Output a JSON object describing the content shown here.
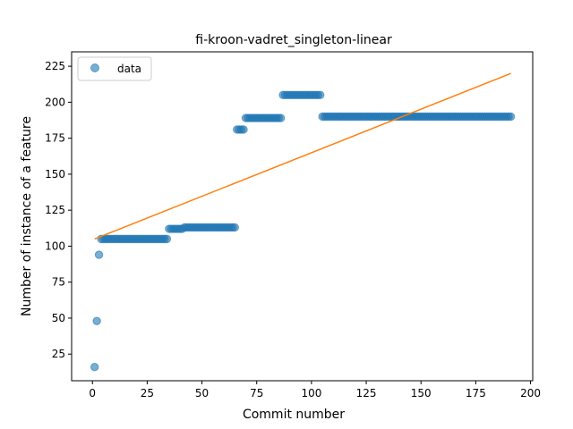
{
  "chart_data": {
    "type": "scatter",
    "title": "fi-kroon-vadret_singleton-linear",
    "xlabel": "Commit number",
    "ylabel": "Number of instance of a feature",
    "xlim": [
      -9.5,
      201
    ],
    "ylim": [
      6.5,
      235
    ],
    "xticks": [
      0,
      25,
      50,
      75,
      100,
      125,
      150,
      175,
      200
    ],
    "yticks": [
      25,
      50,
      75,
      100,
      125,
      150,
      175,
      200,
      225
    ],
    "legend": {
      "position": "top-left",
      "entries": [
        "data"
      ]
    },
    "colors": {
      "data": "#1f77b4",
      "fit": "#ff7f0e"
    },
    "series": [
      {
        "name": "data",
        "style": "markers",
        "segments": [
          {
            "x_start": 1,
            "x_end": 1,
            "y": 16
          },
          {
            "x_start": 2,
            "x_end": 2,
            "y": 48
          },
          {
            "x_start": 3,
            "x_end": 3,
            "y": 94
          },
          {
            "x_start": 4,
            "x_end": 34,
            "y": 105
          },
          {
            "x_start": 35,
            "x_end": 41,
            "y": 112
          },
          {
            "x_start": 42,
            "x_end": 65,
            "y": 113
          },
          {
            "x_start": 66,
            "x_end": 69,
            "y": 181
          },
          {
            "x_start": 70,
            "x_end": 86,
            "y": 189
          },
          {
            "x_start": 87,
            "x_end": 104,
            "y": 205
          },
          {
            "x_start": 105,
            "x_end": 191,
            "y": 190
          }
        ]
      },
      {
        "style": "line",
        "x": [
          1,
          191
        ],
        "y": [
          105,
          220
        ]
      }
    ]
  }
}
